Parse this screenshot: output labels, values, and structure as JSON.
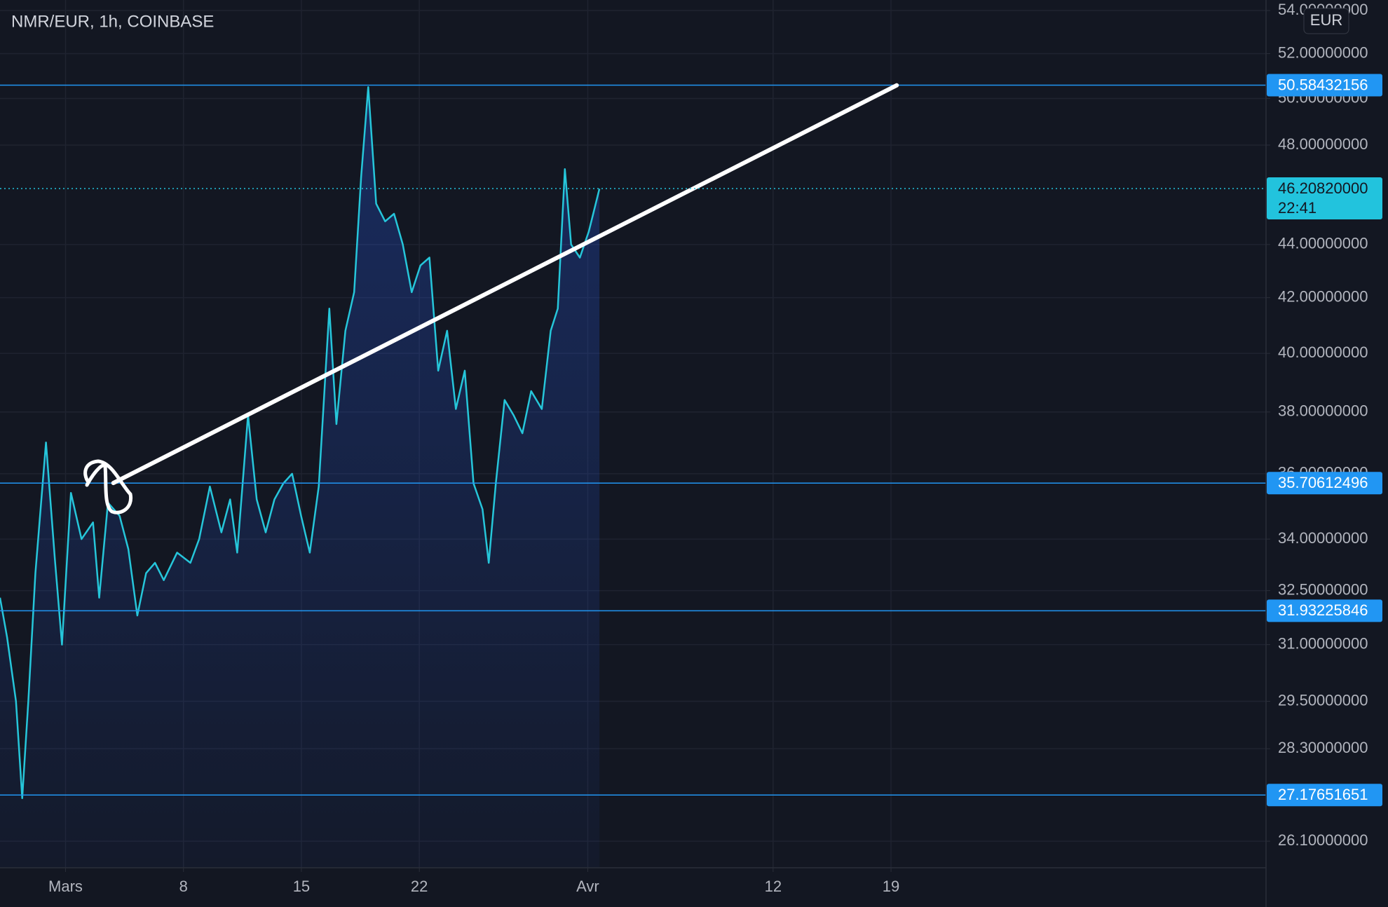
{
  "chart_data": {
    "type": "line",
    "title": "NMR/EUR, 1h, COINBASE",
    "currency": "EUR",
    "log_scale": true,
    "grid": true,
    "xlim": [
      -3.89,
      71.26
    ],
    "ylim": [
      25.5,
      54.5
    ],
    "xticks": [
      {
        "value": 0,
        "label": "Mars"
      },
      {
        "value": 7,
        "label": "8"
      },
      {
        "value": 14,
        "label": "15"
      },
      {
        "value": 21,
        "label": "22"
      },
      {
        "value": 31,
        "label": "Avr"
      },
      {
        "value": 42,
        "label": "12"
      },
      {
        "value": 49,
        "label": "19"
      }
    ],
    "yticks": [
      {
        "value": 26.1,
        "label": "26.10000000"
      },
      {
        "value": 28.3,
        "label": "28.30000000"
      },
      {
        "value": 29.5,
        "label": "29.50000000"
      },
      {
        "value": 31,
        "label": "31.00000000"
      },
      {
        "value": 32.5,
        "label": "32.50000000"
      },
      {
        "value": 34,
        "label": "34.00000000"
      },
      {
        "value": 36,
        "label": "36.00000000"
      },
      {
        "value": 38,
        "label": "38.00000000"
      },
      {
        "value": 40,
        "label": "40.00000000"
      },
      {
        "value": 42,
        "label": "42.00000000"
      },
      {
        "value": 44,
        "label": "44.00000000"
      },
      {
        "value": 48,
        "label": "48.00000000"
      },
      {
        "value": 50,
        "label": "50.00000000"
      },
      {
        "value": 52,
        "label": "52.00000000"
      },
      {
        "value": 54,
        "label": "54.00000000"
      }
    ],
    "series": [
      {
        "name": "NMR/EUR",
        "color": "#26c6da",
        "x": [
          -3.89,
          -3.47,
          -2.94,
          -2.57,
          -2.21,
          -1.79,
          -1.16,
          -0.63,
          -0.21,
          0.32,
          0.95,
          1.63,
          2.0,
          2.52,
          3.21,
          3.73,
          4.26,
          4.78,
          5.31,
          5.83,
          6.62,
          7.41,
          7.93,
          8.57,
          9.25,
          9.77,
          10.19,
          10.83,
          11.35,
          11.88,
          12.4,
          12.93,
          13.45,
          13.98,
          14.5,
          15.03,
          15.66,
          16.08,
          16.61,
          17.13,
          17.55,
          17.97,
          18.44,
          18.97,
          19.5,
          20.02,
          20.55,
          21.07,
          21.6,
          22.12,
          22.65,
          23.17,
          23.7,
          24.22,
          24.75,
          25.12,
          25.54,
          26.06,
          26.59,
          27.12,
          27.64,
          28.27,
          28.8,
          29.22,
          29.64,
          30.01,
          30.53,
          31.06,
          31.69
        ],
        "values": [
          32.3,
          31.2,
          29.5,
          27.1,
          29.5,
          33.0,
          37.0,
          33.4,
          31.0,
          35.4,
          34.0,
          34.5,
          32.3,
          35.1,
          34.7,
          33.7,
          31.8,
          33.0,
          33.3,
          32.8,
          33.6,
          33.3,
          34.0,
          35.6,
          34.2,
          35.2,
          33.6,
          37.9,
          35.2,
          34.2,
          35.2,
          35.7,
          36.0,
          34.7,
          33.6,
          35.6,
          41.6,
          37.6,
          40.8,
          42.2,
          46.7,
          50.5,
          45.6,
          44.9,
          45.2,
          44.0,
          42.2,
          43.2,
          43.5,
          39.4,
          40.8,
          38.1,
          39.4,
          35.7,
          34.9,
          33.3,
          35.7,
          38.4,
          37.9,
          37.3,
          38.7,
          38.1,
          40.8,
          41.6,
          47.0,
          44.0,
          43.5,
          44.5,
          46.2
        ]
      }
    ],
    "levels": [
      {
        "value": 50.58432156,
        "label": "50.58432156"
      },
      {
        "value": 35.70612496,
        "label": "35.70612496"
      },
      {
        "value": 31.93225846,
        "label": "31.93225846"
      },
      {
        "value": 27.17651651,
        "label": "27.17651651"
      }
    ],
    "level_color": "#2196f3",
    "current_price": {
      "value": 46.2082,
      "label": "46.20820000",
      "time": "22:41",
      "color": "#22c3dd"
    },
    "trendline": {
      "x": [
        2.84,
        49.34
      ],
      "y": [
        35.71,
        50.58
      ],
      "color": "#ffffff"
    }
  }
}
